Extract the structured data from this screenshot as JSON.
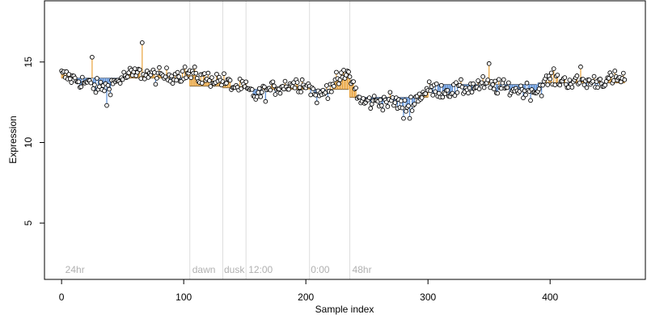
{
  "chart_data": {
    "type": "scatter",
    "xlabel": "Sample index",
    "ylabel": "Expression",
    "xlim": [
      -14,
      478
    ],
    "ylim": [
      1.5,
      18.8
    ],
    "xticks": [
      0,
      100,
      200,
      300,
      400
    ],
    "yticks": [
      5,
      10,
      15
    ],
    "grid": false,
    "colors": {
      "above": "#e8a33d",
      "below": "#5b8fd6",
      "point_fill": "#ffffff",
      "point_stroke": "#000000",
      "divider": "#dddddd",
      "group_label": "#b0b0b0"
    },
    "group_labels": [
      {
        "text": "24hr",
        "x": 3
      },
      {
        "text": "dawn",
        "x": 107
      },
      {
        "text": "dusk",
        "x": 133
      },
      {
        "text": "12:00",
        "x": 153
      },
      {
        "text": "0:00",
        "x": 204
      },
      {
        "text": "48hr",
        "x": 238
      }
    ],
    "dividers": [
      105,
      132,
      151,
      203,
      236
    ],
    "segment_baselines": [
      {
        "from": 0,
        "to": 104,
        "baseline": 14.0
      },
      {
        "from": 105,
        "to": 131,
        "baseline": 13.5
      },
      {
        "from": 132,
        "to": 150,
        "baseline": 13.4
      },
      {
        "from": 151,
        "to": 202,
        "baseline": 13.3
      },
      {
        "from": 203,
        "to": 235,
        "baseline": 13.3
      },
      {
        "from": 236,
        "to": 300,
        "baseline": 12.8
      },
      {
        "from": 301,
        "to": 389,
        "baseline": 13.6
      },
      {
        "from": 390,
        "to": 461,
        "baseline": 13.7
      }
    ],
    "trend_anchors": [
      [
        0,
        14.2
      ],
      [
        20,
        13.7
      ],
      [
        30,
        13.4
      ],
      [
        40,
        13.6
      ],
      [
        55,
        14.2
      ],
      [
        65,
        14.3
      ],
      [
        80,
        14.1
      ],
      [
        95,
        14.2
      ],
      [
        104,
        14.3
      ],
      [
        115,
        14.0
      ],
      [
        131,
        13.9
      ],
      [
        140,
        13.5
      ],
      [
        150,
        13.4
      ],
      [
        158,
        12.9
      ],
      [
        175,
        13.4
      ],
      [
        185,
        13.6
      ],
      [
        200,
        13.7
      ],
      [
        210,
        12.8
      ],
      [
        220,
        13.5
      ],
      [
        235,
        14.3
      ],
      [
        245,
        12.5
      ],
      [
        270,
        12.6
      ],
      [
        282,
        12.2
      ],
      [
        300,
        13.3
      ],
      [
        320,
        13.2
      ],
      [
        345,
        13.6
      ],
      [
        370,
        13.3
      ],
      [
        389,
        13.2
      ],
      [
        400,
        14.0
      ],
      [
        420,
        13.7
      ],
      [
        440,
        13.8
      ],
      [
        461,
        14.0
      ]
    ],
    "highlight_points": [
      {
        "x": 25,
        "y": 15.3
      },
      {
        "x": 66,
        "y": 16.2
      },
      {
        "x": 350,
        "y": 14.9
      },
      {
        "x": 425,
        "y": 14.7
      },
      {
        "x": 280,
        "y": 11.5
      },
      {
        "x": 285,
        "y": 11.5
      },
      {
        "x": 37,
        "y": 12.3
      }
    ],
    "n_points": 462
  }
}
